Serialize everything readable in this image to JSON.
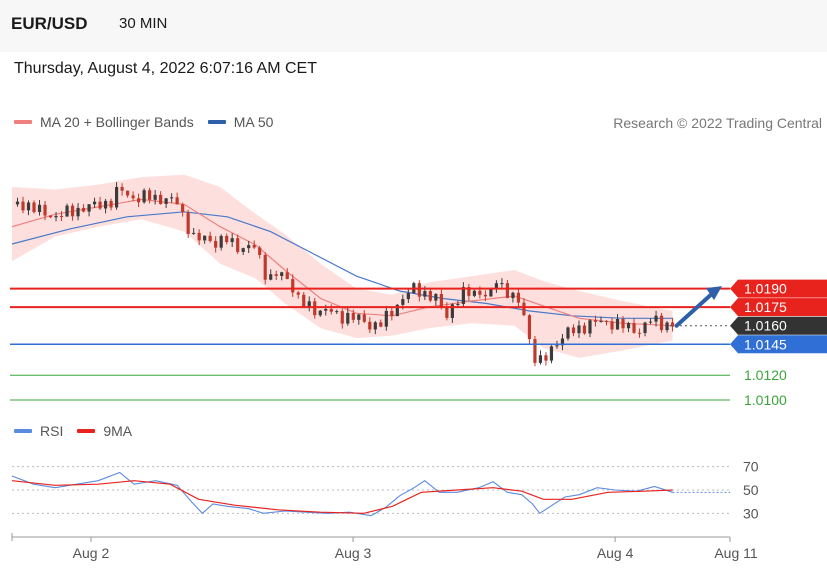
{
  "header": {
    "pair": "EUR/USD",
    "timeframe": "30 MIN",
    "datetime": "Thursday, August 4, 2022 6:07:16 AM CET"
  },
  "legend": {
    "ma20": "MA 20 + Bollinger Bands",
    "ma50": "MA 50",
    "rsi": "RSI",
    "ma9": "9MA"
  },
  "credit": "Research © 2022 Trading Central",
  "colors": {
    "resistance": "#e8231e",
    "support": "#2f6fd6",
    "target": "#3aa63a",
    "ma20": "#f07f7f",
    "ma50": "#4a78c9",
    "bands": "#fde0de",
    "candle_up": "#3b3b3b",
    "candle_down": "#c0392b",
    "rsi": "#5b8be0",
    "rsi_ma": "#e8231e",
    "arrow": "#2e5fa8"
  },
  "chart_data": {
    "type": "candlestick",
    "price_levels": [
      {
        "value": "1.0190",
        "kind": "resistance"
      },
      {
        "value": "1.0175",
        "kind": "resistance"
      },
      {
        "value": "1.0160",
        "kind": "last"
      },
      {
        "value": "1.0145",
        "kind": "support"
      },
      {
        "value": "1.0120",
        "kind": "target"
      },
      {
        "value": "1.0100",
        "kind": "target"
      }
    ],
    "price_range": [
      1.01,
      1.031
    ],
    "rsi_ticks": [
      "70",
      "50",
      "30"
    ],
    "rsi_range": [
      20,
      80
    ],
    "x_labels": [
      {
        "label": "Aug 2",
        "frac": 0.11
      },
      {
        "label": "Aug 3",
        "frac": 0.475
      },
      {
        "label": "Aug 4",
        "frac": 0.84
      },
      {
        "label": "Aug 11",
        "frac": 1.0
      }
    ],
    "close_path": [
      [
        0.0,
        1.0258
      ],
      [
        0.02,
        1.0258
      ],
      [
        0.04,
        1.0252
      ],
      [
        0.06,
        1.0248
      ],
      [
        0.08,
        1.0252
      ],
      [
        0.1,
        1.0255
      ],
      [
        0.12,
        1.0258
      ],
      [
        0.14,
        1.026
      ],
      [
        0.15,
        1.0272
      ],
      [
        0.16,
        1.0266
      ],
      [
        0.175,
        1.0262
      ],
      [
        0.19,
        1.0265
      ],
      [
        0.21,
        1.0262
      ],
      [
        0.23,
        1.026
      ],
      [
        0.245,
        1.024
      ],
      [
        0.255,
        1.0228
      ],
      [
        0.27,
        1.0232
      ],
      [
        0.285,
        1.0226
      ],
      [
        0.3,
        1.023
      ],
      [
        0.32,
        1.0222
      ],
      [
        0.34,
        1.0224
      ],
      [
        0.35,
        1.0205
      ],
      [
        0.36,
        1.0198
      ],
      [
        0.37,
        1.0202
      ],
      [
        0.385,
        1.0198
      ],
      [
        0.4,
        1.018
      ],
      [
        0.41,
        1.0176
      ],
      [
        0.425,
        1.0172
      ],
      [
        0.44,
        1.0173
      ],
      [
        0.455,
        1.0167
      ],
      [
        0.47,
        1.0168
      ],
      [
        0.485,
        1.0165
      ],
      [
        0.5,
        1.016
      ],
      [
        0.515,
        1.0162
      ],
      [
        0.53,
        1.0172
      ],
      [
        0.545,
        1.0183
      ],
      [
        0.56,
        1.019
      ],
      [
        0.575,
        1.0186
      ],
      [
        0.59,
        1.0182
      ],
      [
        0.605,
        1.0168
      ],
      [
        0.615,
        1.0178
      ],
      [
        0.63,
        1.0186
      ],
      [
        0.65,
        1.0188
      ],
      [
        0.665,
        1.0182
      ],
      [
        0.675,
        1.0198
      ],
      [
        0.685,
        1.019
      ],
      [
        0.7,
        1.0182
      ],
      [
        0.712,
        1.0172
      ],
      [
        0.722,
        1.0145
      ],
      [
        0.73,
        1.0132
      ],
      [
        0.74,
        1.013
      ],
      [
        0.75,
        1.014
      ],
      [
        0.76,
        1.0148
      ],
      [
        0.775,
        1.0155
      ],
      [
        0.79,
        1.0157
      ],
      [
        0.805,
        1.0162
      ],
      [
        0.82,
        1.0163
      ],
      [
        0.84,
        1.0162
      ],
      [
        0.86,
        1.0158
      ],
      [
        0.875,
        1.0156
      ],
      [
        0.89,
        1.0165
      ],
      [
        0.905,
        1.0162
      ],
      [
        0.92,
        1.016
      ]
    ],
    "ma20_path": [
      [
        0.0,
        1.024
      ],
      [
        0.06,
        1.025
      ],
      [
        0.12,
        1.0256
      ],
      [
        0.18,
        1.0262
      ],
      [
        0.24,
        1.0258
      ],
      [
        0.29,
        1.024
      ],
      [
        0.34,
        1.0225
      ],
      [
        0.38,
        1.0205
      ],
      [
        0.43,
        1.0182
      ],
      [
        0.48,
        1.017
      ],
      [
        0.53,
        1.0168
      ],
      [
        0.58,
        1.0175
      ],
      [
        0.64,
        1.018
      ],
      [
        0.7,
        1.0184
      ],
      [
        0.74,
        1.0176
      ],
      [
        0.79,
        1.0166
      ],
      [
        0.85,
        1.0162
      ],
      [
        0.92,
        1.016
      ]
    ],
    "ma50_path": [
      [
        0.0,
        1.0226
      ],
      [
        0.08,
        1.0238
      ],
      [
        0.16,
        1.0248
      ],
      [
        0.24,
        1.0252
      ],
      [
        0.3,
        1.0248
      ],
      [
        0.36,
        1.0236
      ],
      [
        0.42,
        1.0218
      ],
      [
        0.48,
        1.02
      ],
      [
        0.54,
        1.0188
      ],
      [
        0.6,
        1.0182
      ],
      [
        0.66,
        1.0178
      ],
      [
        0.72,
        1.0172
      ],
      [
        0.78,
        1.0168
      ],
      [
        0.85,
        1.0166
      ],
      [
        0.92,
        1.0166
      ]
    ],
    "band_upper": [
      [
        0.0,
        1.0272
      ],
      [
        0.06,
        1.027
      ],
      [
        0.12,
        1.0274
      ],
      [
        0.18,
        1.028
      ],
      [
        0.24,
        1.0282
      ],
      [
        0.29,
        1.0272
      ],
      [
        0.34,
        1.025
      ],
      [
        0.38,
        1.0234
      ],
      [
        0.43,
        1.021
      ],
      [
        0.48,
        1.019
      ],
      [
        0.53,
        1.0185
      ],
      [
        0.58,
        1.0195
      ],
      [
        0.64,
        1.02
      ],
      [
        0.7,
        1.0205
      ],
      [
        0.74,
        1.0196
      ],
      [
        0.79,
        1.0188
      ],
      [
        0.85,
        1.018
      ],
      [
        0.92,
        1.0172
      ]
    ],
    "band_lower": [
      [
        0.0,
        1.0212
      ],
      [
        0.06,
        1.0232
      ],
      [
        0.12,
        1.024
      ],
      [
        0.18,
        1.0246
      ],
      [
        0.24,
        1.0236
      ],
      [
        0.29,
        1.021
      ],
      [
        0.34,
        1.0198
      ],
      [
        0.38,
        1.0178
      ],
      [
        0.43,
        1.0158
      ],
      [
        0.48,
        1.015
      ],
      [
        0.53,
        1.0152
      ],
      [
        0.58,
        1.0158
      ],
      [
        0.64,
        1.0162
      ],
      [
        0.7,
        1.016
      ],
      [
        0.74,
        1.0142
      ],
      [
        0.79,
        1.0134
      ],
      [
        0.85,
        1.014
      ],
      [
        0.92,
        1.0148
      ]
    ],
    "rsi_path": [
      [
        0.0,
        62
      ],
      [
        0.03,
        55
      ],
      [
        0.06,
        52
      ],
      [
        0.09,
        55
      ],
      [
        0.12,
        58
      ],
      [
        0.15,
        65
      ],
      [
        0.17,
        55
      ],
      [
        0.2,
        58
      ],
      [
        0.23,
        54
      ],
      [
        0.25,
        40
      ],
      [
        0.265,
        30
      ],
      [
        0.28,
        38
      ],
      [
        0.3,
        36
      ],
      [
        0.33,
        34
      ],
      [
        0.35,
        30
      ],
      [
        0.38,
        32
      ],
      [
        0.41,
        31
      ],
      [
        0.44,
        30
      ],
      [
        0.47,
        31
      ],
      [
        0.5,
        28
      ],
      [
        0.52,
        35
      ],
      [
        0.54,
        45
      ],
      [
        0.56,
        52
      ],
      [
        0.575,
        58
      ],
      [
        0.595,
        48
      ],
      [
        0.62,
        48
      ],
      [
        0.65,
        52
      ],
      [
        0.67,
        57
      ],
      [
        0.69,
        48
      ],
      [
        0.71,
        46
      ],
      [
        0.725,
        38
      ],
      [
        0.735,
        30
      ],
      [
        0.75,
        36
      ],
      [
        0.77,
        44
      ],
      [
        0.79,
        46
      ],
      [
        0.815,
        52
      ],
      [
        0.84,
        50
      ],
      [
        0.87,
        49
      ],
      [
        0.895,
        53
      ],
      [
        0.92,
        48
      ]
    ],
    "rsi_ma_path": [
      [
        0.0,
        58
      ],
      [
        0.06,
        54
      ],
      [
        0.12,
        55
      ],
      [
        0.17,
        58
      ],
      [
        0.22,
        55
      ],
      [
        0.26,
        42
      ],
      [
        0.31,
        37
      ],
      [
        0.37,
        33
      ],
      [
        0.43,
        31
      ],
      [
        0.49,
        30
      ],
      [
        0.53,
        36
      ],
      [
        0.57,
        48
      ],
      [
        0.62,
        50
      ],
      [
        0.67,
        52
      ],
      [
        0.71,
        49
      ],
      [
        0.74,
        42
      ],
      [
        0.78,
        42
      ],
      [
        0.83,
        48
      ],
      [
        0.88,
        49
      ],
      [
        0.92,
        50
      ]
    ]
  }
}
